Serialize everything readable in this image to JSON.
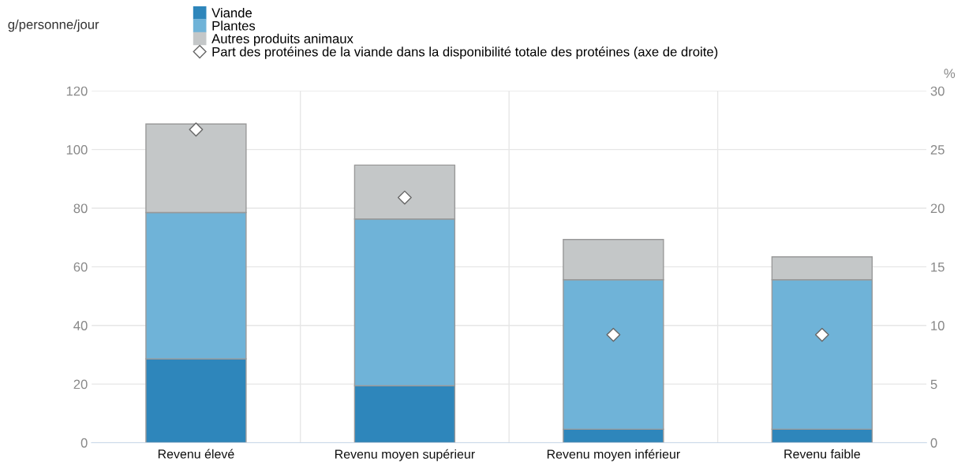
{
  "chart_data": {
    "type": "bar",
    "stacked": true,
    "categories": [
      "Revenu élevé",
      "Revenu moyen supérieur",
      "Revenu moyen inférieur",
      "Revenu faible"
    ],
    "series": [
      {
        "name": "Viande",
        "color": "#2e86bb",
        "values": [
          28.6,
          19.4,
          4.6,
          4.6
        ]
      },
      {
        "name": "Plantes",
        "color": "#6fb3d8",
        "values": [
          49.9,
          56.9,
          51.0,
          51.0
        ]
      },
      {
        "name": "Autres produits animaux",
        "color": "#c4c7c8",
        "values": [
          30.2,
          18.4,
          13.7,
          7.8
        ]
      },
      {
        "name": "Part des protéines de la viande dans la disponibilité totale des protéines (axe de droite)",
        "type": "scatter",
        "axis": "y2",
        "color": "#ffffff",
        "marker": "diamond",
        "values": [
          26.7,
          20.9,
          9.2,
          9.2
        ]
      }
    ],
    "ylabel": "g/personne/jour",
    "y2label": "%",
    "ylim": [
      0,
      120
    ],
    "yticks": [
      0,
      20,
      40,
      60,
      80,
      100,
      120
    ],
    "y2lim": [
      0,
      30
    ],
    "y2ticks": [
      0,
      5,
      10,
      15,
      20,
      25,
      30
    ],
    "grid": true,
    "legend": "top left"
  }
}
